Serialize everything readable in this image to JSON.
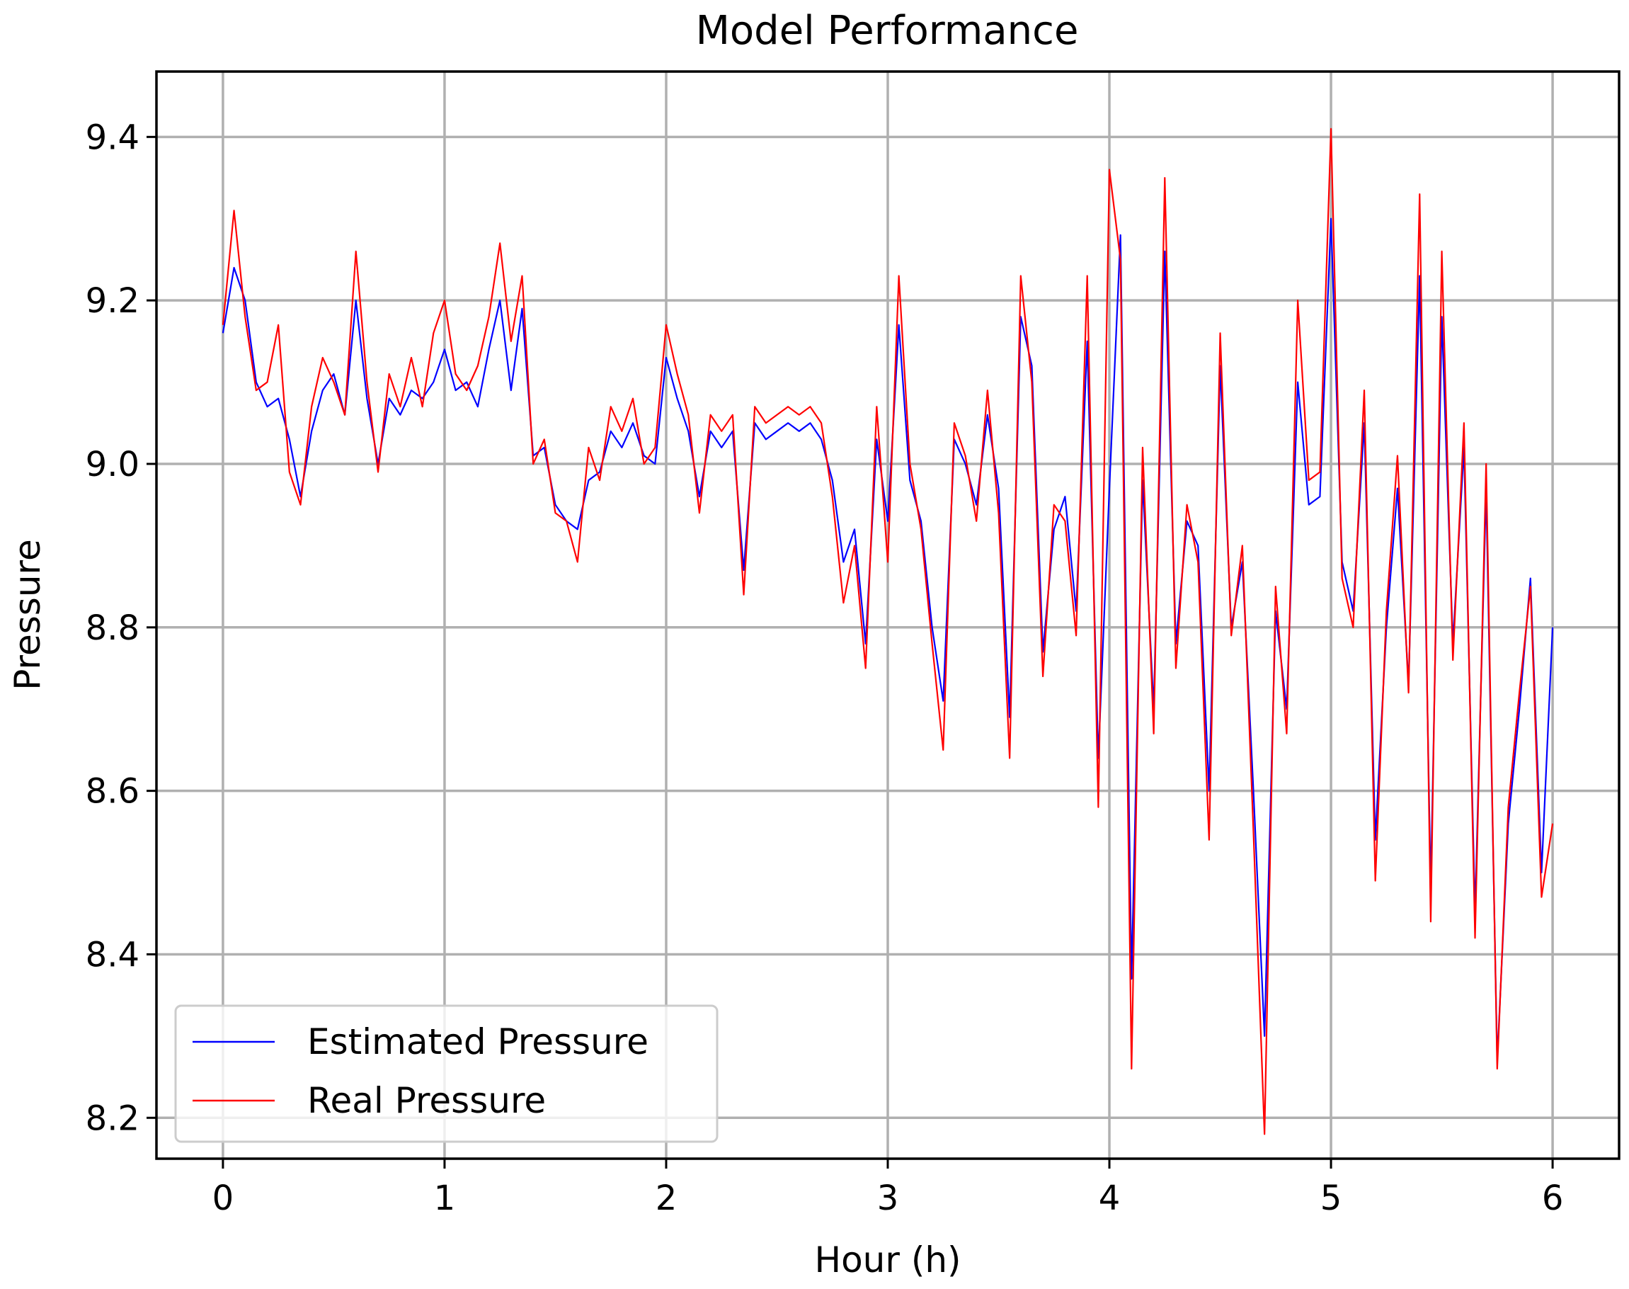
{
  "chart_data": {
    "type": "line",
    "title": "Model Performance",
    "xlabel": "Hour (h)",
    "ylabel": "Pressure",
    "xlim": [
      -0.3,
      6.3
    ],
    "ylim": [
      8.15,
      9.48
    ],
    "xticks": [
      0,
      1,
      2,
      3,
      4,
      5,
      6
    ],
    "xtick_labels": [
      "0",
      "1",
      "2",
      "3",
      "4",
      "5",
      "6"
    ],
    "yticks": [
      8.2,
      8.4,
      8.6,
      8.8,
      9.0,
      9.2,
      9.4
    ],
    "ytick_labels": [
      "8.2",
      "8.4",
      "8.6",
      "8.8",
      "9.0",
      "9.2",
      "9.4"
    ],
    "grid": true,
    "legend_position": "bottom-left",
    "x": [
      0.0,
      0.05,
      0.1,
      0.15,
      0.2,
      0.25,
      0.3,
      0.35,
      0.4,
      0.45,
      0.5,
      0.55,
      0.6,
      0.65,
      0.7,
      0.75,
      0.8,
      0.85,
      0.9,
      0.95,
      1.0,
      1.05,
      1.1,
      1.15,
      1.2,
      1.25,
      1.3,
      1.35,
      1.4,
      1.45,
      1.5,
      1.55,
      1.6,
      1.65,
      1.7,
      1.75,
      1.8,
      1.85,
      1.9,
      1.95,
      2.0,
      2.05,
      2.1,
      2.15,
      2.2,
      2.25,
      2.3,
      2.35,
      2.4,
      2.45,
      2.5,
      2.55,
      2.6,
      2.65,
      2.7,
      2.75,
      2.8,
      2.85,
      2.9,
      2.95,
      3.0,
      3.05,
      3.1,
      3.15,
      3.2,
      3.25,
      3.3,
      3.35,
      3.4,
      3.45,
      3.5,
      3.55,
      3.6,
      3.65,
      3.7,
      3.75,
      3.8,
      3.85,
      3.9,
      3.95,
      4.0,
      4.05,
      4.1,
      4.15,
      4.2,
      4.25,
      4.3,
      4.35,
      4.4,
      4.45,
      4.5,
      4.55,
      4.6,
      4.65,
      4.7,
      4.75,
      4.8,
      4.85,
      4.9,
      4.95,
      5.0,
      5.05,
      5.1,
      5.15,
      5.2,
      5.25,
      5.3,
      5.35,
      5.4,
      5.45,
      5.5,
      5.55,
      5.6,
      5.65,
      5.7,
      5.75,
      5.8,
      5.85,
      5.9,
      5.95,
      6.0
    ],
    "series": [
      {
        "name": "Estimated Pressure",
        "color": "#0000ff",
        "values": [
          9.16,
          9.24,
          9.2,
          9.1,
          9.07,
          9.08,
          9.03,
          8.96,
          9.04,
          9.09,
          9.11,
          9.06,
          9.2,
          9.08,
          9.0,
          9.08,
          9.06,
          9.09,
          9.08,
          9.1,
          9.14,
          9.09,
          9.1,
          9.07,
          9.14,
          9.2,
          9.09,
          9.19,
          9.01,
          9.02,
          8.95,
          8.93,
          8.92,
          8.98,
          8.99,
          9.04,
          9.02,
          9.05,
          9.01,
          9.0,
          9.13,
          9.08,
          9.04,
          8.96,
          9.04,
          9.02,
          9.04,
          8.87,
          9.05,
          9.03,
          9.04,
          9.05,
          9.04,
          9.05,
          9.03,
          8.98,
          8.88,
          8.92,
          8.78,
          9.03,
          8.93,
          9.17,
          8.98,
          8.93,
          8.8,
          8.71,
          9.03,
          9.0,
          8.95,
          9.06,
          8.97,
          8.69,
          9.18,
          9.12,
          8.77,
          8.92,
          8.96,
          8.82,
          9.15,
          8.64,
          8.97,
          9.28,
          8.37,
          8.98,
          8.7,
          9.26,
          8.78,
          8.93,
          8.9,
          8.6,
          9.12,
          8.8,
          8.88,
          8.6,
          8.3,
          8.82,
          8.7,
          9.1,
          8.95,
          8.96,
          9.3,
          8.88,
          8.82,
          9.05,
          8.54,
          8.8,
          8.97,
          8.73,
          9.23,
          8.48,
          9.18,
          8.78,
          9.02,
          8.45,
          8.97,
          8.27,
          8.56,
          8.7,
          8.86,
          8.5,
          8.8
        ]
      },
      {
        "name": "Real Pressure",
        "color": "#ff0000",
        "values": [
          9.17,
          9.31,
          9.18,
          9.09,
          9.1,
          9.17,
          8.99,
          8.95,
          9.07,
          9.13,
          9.1,
          9.06,
          9.26,
          9.1,
          8.99,
          9.11,
          9.07,
          9.13,
          9.07,
          9.16,
          9.2,
          9.11,
          9.09,
          9.12,
          9.18,
          9.27,
          9.15,
          9.23,
          9.0,
          9.03,
          8.94,
          8.93,
          8.88,
          9.02,
          8.98,
          9.07,
          9.04,
          9.08,
          9.0,
          9.02,
          9.17,
          9.11,
          9.06,
          8.94,
          9.06,
          9.04,
          9.06,
          8.84,
          9.07,
          9.05,
          9.06,
          9.07,
          9.06,
          9.07,
          9.05,
          8.96,
          8.83,
          8.9,
          8.75,
          9.07,
          8.88,
          9.23,
          9.0,
          8.92,
          8.78,
          8.65,
          9.05,
          9.01,
          8.93,
          9.09,
          8.94,
          8.64,
          9.23,
          9.1,
          8.74,
          8.95,
          8.93,
          8.79,
          9.23,
          8.58,
          9.36,
          9.25,
          8.26,
          9.02,
          8.67,
          9.35,
          8.75,
          8.95,
          8.88,
          8.54,
          9.16,
          8.79,
          8.9,
          8.55,
          8.18,
          8.85,
          8.67,
          9.2,
          8.98,
          8.99,
          9.41,
          8.86,
          8.8,
          9.09,
          8.49,
          8.82,
          9.01,
          8.72,
          9.33,
          8.44,
          9.26,
          8.76,
          9.05,
          8.42,
          9.0,
          8.26,
          8.58,
          8.72,
          8.85,
          8.47,
          8.56
        ]
      }
    ]
  }
}
